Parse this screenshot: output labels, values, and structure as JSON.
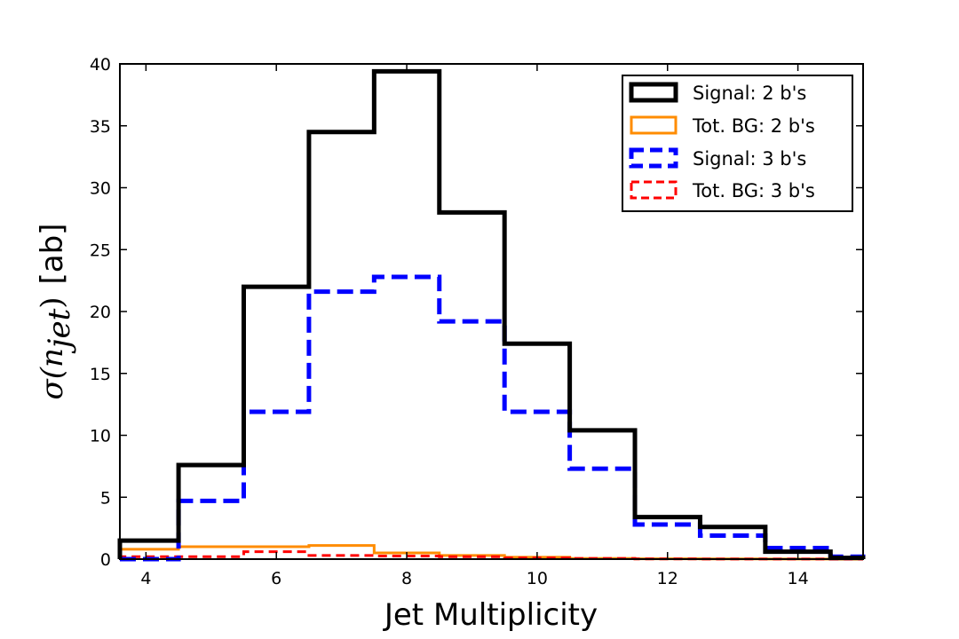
{
  "chart_data": {
    "type": "histogram",
    "title": "",
    "xlabel": "Jet Multiplicity",
    "ylabel_math": "σ(n",
    "ylabel_sub": "jet",
    "ylabel_close": ")",
    "ylabel_unit": "[ab]",
    "xlim": [
      3.6,
      15
    ],
    "ylim": [
      0,
      40
    ],
    "xticks": [
      4,
      6,
      8,
      10,
      12,
      14
    ],
    "yticks": [
      0,
      5,
      10,
      15,
      20,
      25,
      30,
      35,
      40
    ],
    "bin_edges": [
      3.6,
      4.5,
      5.5,
      6.5,
      7.5,
      8.5,
      9.5,
      10.5,
      11.5,
      12.5,
      13.5,
      14.5,
      15
    ],
    "legend_position": "top-right",
    "series": [
      {
        "name": "Signal: 2 b's",
        "color": "#000000",
        "style": "solid",
        "values": [
          1.5,
          7.6,
          22.0,
          34.5,
          39.4,
          28.0,
          17.4,
          10.4,
          3.4,
          2.6,
          0.6,
          0.1
        ]
      },
      {
        "name": "Tot. BG: 2 b's",
        "color": "#ff8c00",
        "style": "solid",
        "values": [
          0.8,
          1.0,
          1.0,
          1.1,
          0.5,
          0.3,
          0.15,
          0.05,
          0.03,
          0.02,
          0.01,
          0.0
        ]
      },
      {
        "name": "Signal: 3 b's",
        "color": "#0000ff",
        "style": "dashed",
        "values": [
          0.0,
          4.7,
          11.9,
          21.6,
          22.8,
          19.2,
          11.9,
          7.3,
          2.8,
          1.9,
          0.9,
          0.2
        ]
      },
      {
        "name": "Tot. BG: 3 b's",
        "color": "#ff0000",
        "style": "dashed",
        "values": [
          0.2,
          0.2,
          0.6,
          0.3,
          0.25,
          0.2,
          0.1,
          0.05,
          0.02,
          0.01,
          0.01,
          0.0
        ]
      }
    ]
  }
}
